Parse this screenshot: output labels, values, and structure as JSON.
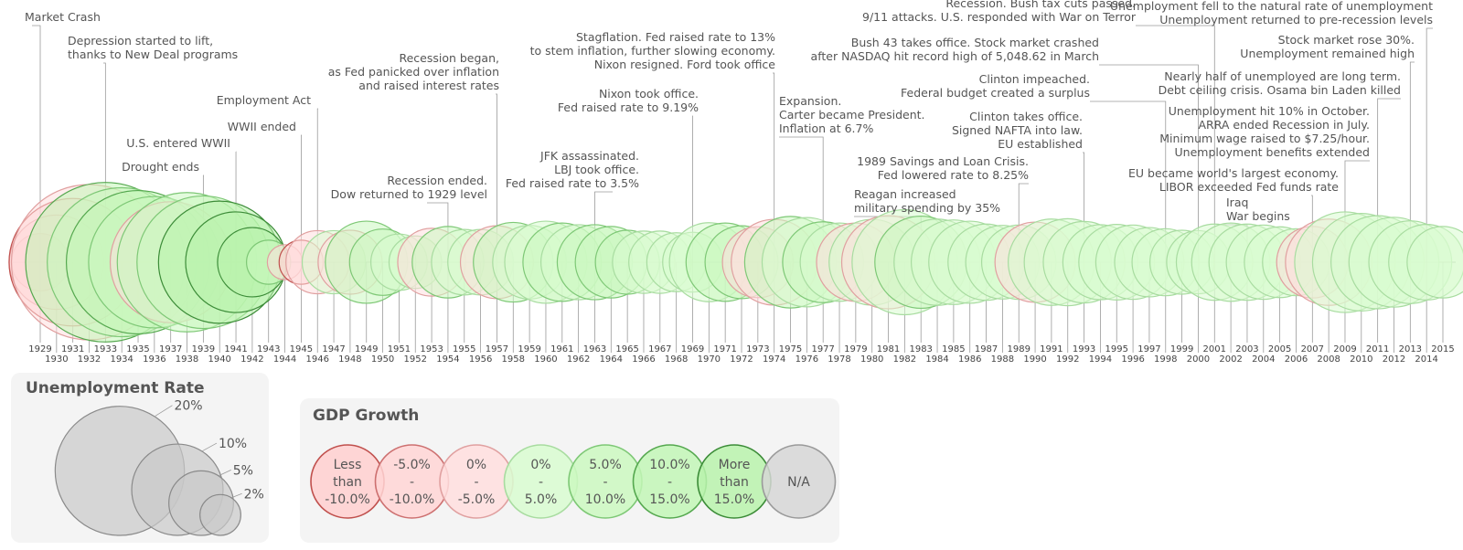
{
  "chart_data": {
    "type": "bubble-timeline",
    "description_fields": "Each year: unemployment rate (bubble size, %) and GDP growth (bubble color, %)",
    "years": [
      1929,
      1930,
      1931,
      1932,
      1933,
      1934,
      1935,
      1936,
      1937,
      1938,
      1939,
      1940,
      1941,
      1942,
      1943,
      1944,
      1945,
      1946,
      1947,
      1948,
      1949,
      1950,
      1951,
      1952,
      1953,
      1954,
      1955,
      1956,
      1957,
      1958,
      1959,
      1960,
      1961,
      1962,
      1963,
      1964,
      1965,
      1966,
      1967,
      1968,
      1969,
      1970,
      1971,
      1972,
      1973,
      1974,
      1975,
      1976,
      1977,
      1978,
      1979,
      1980,
      1981,
      1982,
      1983,
      1984,
      1985,
      1986,
      1987,
      1988,
      1989,
      1990,
      1991,
      1992,
      1993,
      1994,
      1995,
      1996,
      1997,
      1998,
      1999,
      2000,
      2001,
      2002,
      2003,
      2004,
      2005,
      2006,
      2007,
      2008,
      2009,
      2010,
      2011,
      2012,
      2013,
      2014,
      2015
    ],
    "unemployment": [
      3.2,
      8.7,
      15.9,
      23.6,
      24.9,
      21.7,
      20.1,
      16.9,
      14.3,
      19.0,
      17.2,
      14.6,
      9.9,
      4.7,
      1.9,
      1.2,
      1.9,
      3.9,
      3.9,
      4.0,
      6.6,
      4.3,
      3.1,
      2.7,
      4.5,
      5.0,
      4.2,
      4.2,
      5.2,
      6.2,
      5.3,
      6.6,
      6.0,
      5.5,
      5.5,
      5.0,
      4.0,
      3.8,
      3.8,
      3.4,
      3.5,
      6.1,
      6.0,
      5.2,
      4.9,
      7.2,
      8.2,
      7.8,
      6.4,
      6.0,
      6.0,
      7.2,
      8.5,
      10.8,
      8.3,
      7.3,
      7.0,
      6.6,
      5.7,
      5.3,
      5.4,
      6.3,
      7.3,
      7.4,
      6.5,
      5.5,
      5.6,
      5.4,
      4.7,
      4.4,
      4.0,
      3.9,
      5.7,
      6.0,
      5.7,
      5.4,
      4.9,
      4.4,
      5.0,
      7.3,
      9.9,
      9.3,
      8.5,
      7.9,
      6.7,
      5.6,
      5.0
    ],
    "gdp_growth": [
      -8.5,
      -6.4,
      -12.9,
      -1.3,
      10.8,
      8.9,
      12.9,
      5.1,
      -3.3,
      8.0,
      8.8,
      17.7,
      18.9,
      17.0,
      8.0,
      -1.0,
      -11.6,
      -1.1,
      4.1,
      -0.5,
      8.7,
      8.0,
      4.1,
      4.7,
      -0.6,
      7.1,
      2.1,
      2.1,
      -0.7,
      6.9,
      2.6,
      2.6,
      6.1,
      4.4,
      5.8,
      6.5,
      6.6,
      2.7,
      4.9,
      3.1,
      0.2,
      3.3,
      5.2,
      5.6,
      -0.5,
      -0.2,
      5.4,
      4.6,
      5.6,
      3.2,
      -0.2,
      2.6,
      -1.9,
      4.6,
      7.3,
      4.2,
      3.5,
      3.5,
      4.2,
      3.7,
      1.9,
      -0.1,
      3.6,
      2.7,
      4.0,
      2.7,
      3.8,
      4.5,
      4.5,
      4.8,
      4.1,
      1.0,
      1.8,
      2.8,
      3.8,
      3.3,
      2.7,
      1.8,
      -0.3,
      -2.8,
      2.5,
      1.6,
      2.2,
      1.7,
      2.4,
      2.6,
      2.9
    ],
    "annotations": [
      {
        "year": 1929,
        "lines": [
          "Market Crash"
        ]
      },
      {
        "year": 1933,
        "lines": [
          "Depression started to lift,",
          "thanks to New Deal programs"
        ]
      },
      {
        "year": 1946,
        "lines": [
          "Employment Act"
        ]
      },
      {
        "year": 1945,
        "lines": [
          "WWII ended"
        ]
      },
      {
        "year": 1941,
        "lines": [
          "U.S. entered WWII"
        ]
      },
      {
        "year": 1939,
        "lines": [
          "Drought ends"
        ]
      },
      {
        "year": 1957,
        "lines": [
          "Recession began,",
          "as Fed panicked over inflation",
          "and raised interest rates"
        ]
      },
      {
        "year": 1954,
        "lines": [
          "Recession ended.",
          "Dow returned to 1929 level"
        ]
      },
      {
        "year": 1974,
        "lines": [
          "Stagflation. Fed raised rate to 13%",
          "to stem inflation, further slowing economy.",
          "Nixon resigned. Ford took office"
        ]
      },
      {
        "year": 1969,
        "lines": [
          "Nixon took office.",
          "Fed raised rate to 9.19%"
        ]
      },
      {
        "year": 1963,
        "lines": [
          "JFK assassinated.",
          "LBJ took office.",
          "Fed raised rate to 3.5%"
        ]
      },
      {
        "year": 1977,
        "lines": [
          "Expansion.",
          "Carter became President.",
          "Inflation at 6.7%"
        ]
      },
      {
        "year": 1983,
        "lines": [
          "Reagan increased",
          "military spending by 35%"
        ]
      },
      {
        "year": 1989,
        "lines": [
          "1989 Savings and Loan Crisis.",
          "Fed lowered rate to 8.25%"
        ]
      },
      {
        "year": 1993,
        "lines": [
          "Clinton takes office.",
          "Signed NAFTA into law.",
          "EU established"
        ]
      },
      {
        "year": 1998,
        "lines": [
          "Clinton impeached.",
          "Federal budget created a surplus"
        ]
      },
      {
        "year": 2000,
        "lines": [
          "Bush 43 takes office. Stock market crashed",
          "after NASDAQ hit record high of 5,048.62 in March"
        ]
      },
      {
        "year": 2001,
        "lines": [
          "Recession. Bush tax cuts passed.",
          "9/11 attacks. U.S. responded with War on Terror"
        ]
      },
      {
        "year": 2003,
        "lines": [
          "Iraq",
          "War begins"
        ]
      },
      {
        "year": 2007,
        "lines": [
          "EU became world's largest economy.",
          "LIBOR exceeded Fed funds rate"
        ]
      },
      {
        "year": 2009,
        "lines": [
          "Unemployment hit 10% in October.",
          "ARRA ended Recession in July.",
          "Minimum wage raised to $7.25/hour.",
          "Unemployment benefits extended"
        ]
      },
      {
        "year": 2011,
        "lines": [
          "Nearly half of unemployed are long term.",
          "Debt ceiling crisis. Osama bin Laden killed"
        ]
      },
      {
        "year": 2013,
        "lines": [
          "Stock market rose 30%.",
          "Unemployment remained high"
        ]
      },
      {
        "year": 2014,
        "lines": [
          "Unemployment fell to the natural rate of unemployment",
          "Unemployment returned to pre-recession levels"
        ]
      }
    ]
  },
  "legend": {
    "unemployment": {
      "title": "Unemployment Rate",
      "sizes": [
        {
          "value": 20,
          "label": "20%"
        },
        {
          "value": 10,
          "label": "10%"
        },
        {
          "value": 5,
          "label": "5%"
        },
        {
          "value": 2,
          "label": "2%"
        }
      ]
    },
    "gdp": {
      "title": "GDP Growth",
      "bins": [
        {
          "lines": [
            "Less",
            "than",
            "-10.0%"
          ],
          "fill": "#ffcfcf",
          "stroke": "#c0504d"
        },
        {
          "lines": [
            "-5.0%",
            "-",
            "-10.0%"
          ],
          "fill": "#ffd5d5",
          "stroke": "#cd7070"
        },
        {
          "lines": [
            "0%",
            "-",
            "-5.0%"
          ],
          "fill": "#ffdede",
          "stroke": "#e0a0a0"
        },
        {
          "lines": [
            "0%",
            "-",
            "5.0%"
          ],
          "fill": "#d8fcd0",
          "stroke": "#a8dca0"
        },
        {
          "lines": [
            "5.0%",
            "-",
            "10.0%"
          ],
          "fill": "#cbf8c0",
          "stroke": "#7ec876"
        },
        {
          "lines": [
            "10.0%",
            "-",
            "15.0%"
          ],
          "fill": "#c2f6b6",
          "stroke": "#55a84f"
        },
        {
          "lines": [
            "More",
            "than",
            "15.0%"
          ],
          "fill": "#b8f2ab",
          "stroke": "#3c8c38"
        },
        {
          "lines": [
            "N/A"
          ],
          "fill": "#d6d6d6",
          "stroke": "#9a9a9a"
        }
      ]
    }
  }
}
